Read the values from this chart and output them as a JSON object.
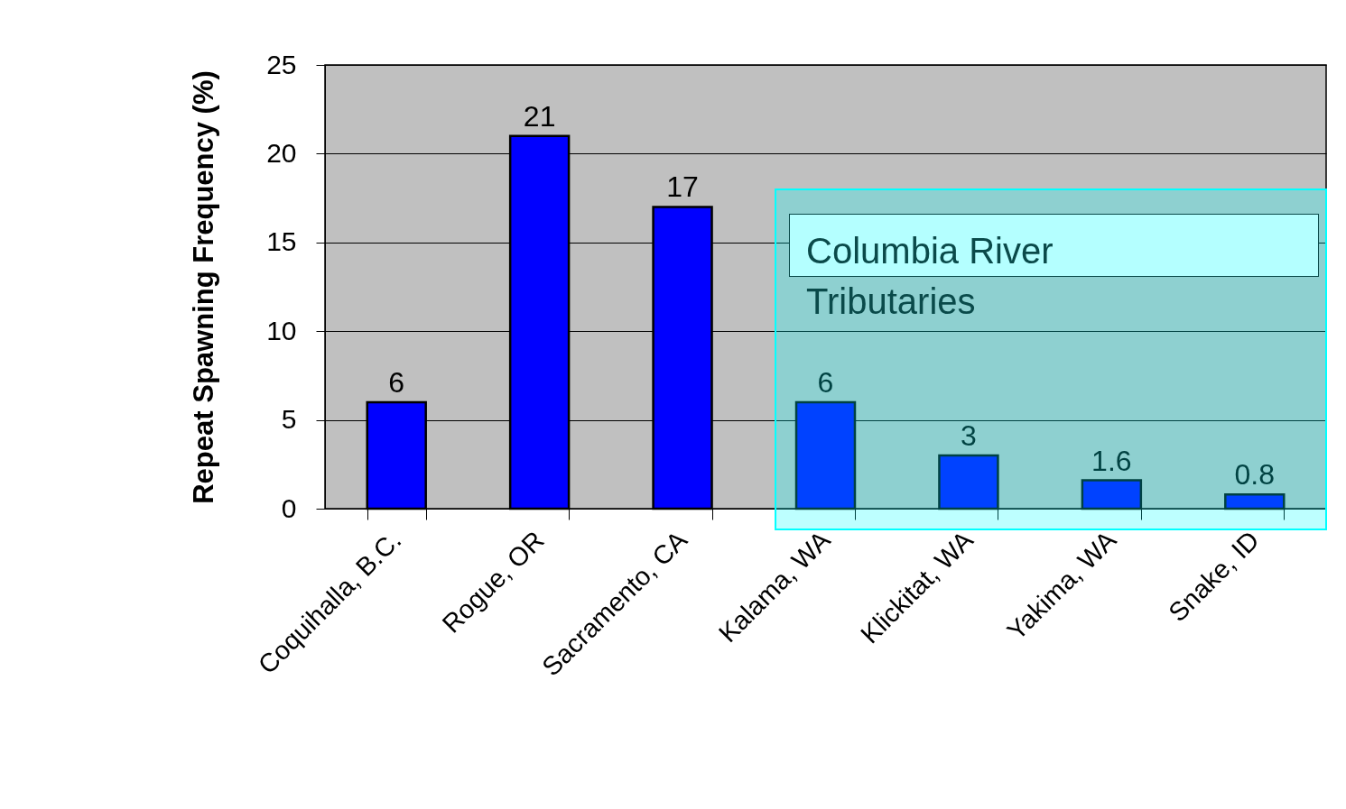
{
  "chart_data": {
    "type": "bar",
    "ylabel": "Repeat Spawning Frequency (%)",
    "categories": [
      "Coquihalla, B.C.",
      "Rogue, OR",
      "Sacramento, CA",
      "Kalama, WA",
      "Klickitat, WA",
      "Yakima, WA",
      "Snake, ID"
    ],
    "values": [
      6,
      21,
      17,
      6,
      3,
      1.6,
      0.8
    ],
    "color": "#0000ff",
    "ylim": [
      0,
      25
    ],
    "yticks": [
      0,
      5,
      10,
      15,
      20,
      25
    ],
    "grid": "y",
    "data_labels": true,
    "bands": [
      {
        "axis": "x",
        "from": "Kalama, WA",
        "to": "Snake, ID",
        "label": "Columbia River Tributaries",
        "color": "#00ffff"
      }
    ]
  }
}
